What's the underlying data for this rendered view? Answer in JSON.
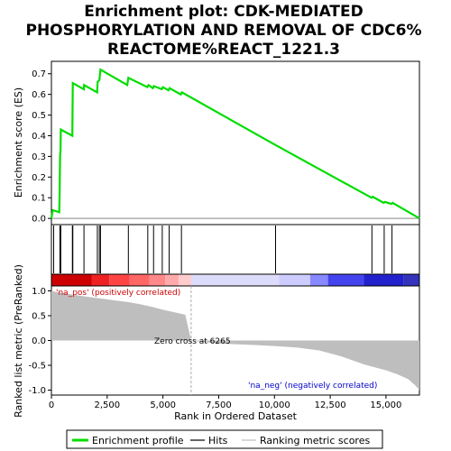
{
  "title_lines": [
    "Enrichment plot: CDK-MEDIATED",
    "PHOSPHORYLATION AND REMOVAL OF CDC6%",
    "REACTOME%REACT_1221.3"
  ],
  "colors": {
    "es_line": "#00dd00",
    "pos_label": "#cc0000",
    "neg_label": "#0000cc",
    "metric_fill": "#bebebe",
    "zero_cross": "#aaaaaa"
  },
  "chart_data": [
    {
      "type": "line",
      "name": "enrichment-profile",
      "ylabel": "Enrichment score (ES)",
      "xlim": [
        0,
        16500
      ],
      "ylim": [
        -0.03,
        0.76
      ],
      "yticks": [
        0.0,
        0.1,
        0.2,
        0.3,
        0.4,
        0.5,
        0.6,
        0.7
      ],
      "ytick_labels": [
        "0.0",
        "0.1",
        "0.2",
        "0.3",
        "0.4",
        "0.5",
        "0.6",
        "0.7"
      ],
      "grid": false,
      "points": [
        [
          0,
          0.0
        ],
        [
          60,
          0.04
        ],
        [
          350,
          0.03
        ],
        [
          370,
          0.12
        ],
        [
          390,
          0.3
        ],
        [
          410,
          0.33
        ],
        [
          420,
          0.43
        ],
        [
          940,
          0.4
        ],
        [
          960,
          0.655
        ],
        [
          1450,
          0.625
        ],
        [
          1470,
          0.645
        ],
        [
          2050,
          0.61
        ],
        [
          2070,
          0.66
        ],
        [
          2150,
          0.67
        ],
        [
          2170,
          0.69
        ],
        [
          2200,
          0.72
        ],
        [
          3400,
          0.645
        ],
        [
          3450,
          0.68
        ],
        [
          4300,
          0.635
        ],
        [
          4350,
          0.645
        ],
        [
          4550,
          0.63
        ],
        [
          4600,
          0.64
        ],
        [
          4950,
          0.625
        ],
        [
          5000,
          0.635
        ],
        [
          5250,
          0.62
        ],
        [
          5300,
          0.63
        ],
        [
          5800,
          0.6
        ],
        [
          5850,
          0.61
        ],
        [
          10050,
          0.355
        ],
        [
          14350,
          0.1
        ],
        [
          14400,
          0.105
        ],
        [
          14900,
          0.075
        ],
        [
          14950,
          0.08
        ],
        [
          15250,
          0.07
        ],
        [
          15300,
          0.075
        ],
        [
          16500,
          0.0
        ]
      ]
    },
    {
      "type": "bar",
      "name": "hits",
      "x": [
        100,
        380,
        420,
        940,
        960,
        1460,
        2060,
        2150,
        2200,
        3450,
        4320,
        4580,
        4970,
        5280,
        5830,
        10050,
        14370,
        14920,
        15270
      ]
    },
    {
      "type": "area",
      "name": "ranked-list-metric",
      "ylabel": "Ranked list metric (PreRanked)",
      "xlabel": "Rank in Ordered Dataset",
      "xlim": [
        0,
        16500
      ],
      "ylim": [
        -1.1,
        1.1
      ],
      "yticks": [
        -1.0,
        -0.5,
        0.0,
        0.5,
        1.0
      ],
      "ytick_labels": [
        "-1.0",
        "-0.5",
        "0.0",
        "0.5",
        "1.0"
      ],
      "xticks": [
        0,
        2500,
        5000,
        7500,
        10000,
        12500,
        15000
      ],
      "xtick_labels": [
        "0",
        "2,500",
        "5,000",
        "7,500",
        "10,000",
        "12,500",
        "15,000"
      ],
      "points": [
        [
          0,
          1.0
        ],
        [
          200,
          0.98
        ],
        [
          600,
          0.95
        ],
        [
          1000,
          0.92
        ],
        [
          1500,
          0.89
        ],
        [
          2000,
          0.86
        ],
        [
          2500,
          0.83
        ],
        [
          3000,
          0.8
        ],
        [
          3500,
          0.77
        ],
        [
          4000,
          0.73
        ],
        [
          4500,
          0.68
        ],
        [
          5000,
          0.62
        ],
        [
          5500,
          0.57
        ],
        [
          6000,
          0.52
        ],
        [
          6265,
          0.0
        ],
        [
          7000,
          -0.04
        ],
        [
          8000,
          -0.07
        ],
        [
          9000,
          -0.09
        ],
        [
          10000,
          -0.11
        ],
        [
          11000,
          -0.14
        ],
        [
          12000,
          -0.2
        ],
        [
          12500,
          -0.26
        ],
        [
          13000,
          -0.32
        ],
        [
          13500,
          -0.4
        ],
        [
          14000,
          -0.48
        ],
        [
          14500,
          -0.54
        ],
        [
          15000,
          -0.6
        ],
        [
          15500,
          -0.68
        ],
        [
          16000,
          -0.78
        ],
        [
          16300,
          -0.9
        ],
        [
          16500,
          -1.0
        ]
      ],
      "annotations": {
        "pos": "'na_pos' (positively correlated)",
        "neg": "'na_neg' (negatively correlated)",
        "zero_cross": "Zero cross at 6265"
      },
      "zero_cross": 6265
    }
  ],
  "heatmap_strip": {
    "segments": [
      {
        "start": 0,
        "end": 1800,
        "color": "#cc0000"
      },
      {
        "start": 1800,
        "end": 2600,
        "color": "#ee2222"
      },
      {
        "start": 2600,
        "end": 3500,
        "color": "#ff4444"
      },
      {
        "start": 3500,
        "end": 4400,
        "color": "#ff6666"
      },
      {
        "start": 4400,
        "end": 5100,
        "color": "#ff8888"
      },
      {
        "start": 5100,
        "end": 5700,
        "color": "#ffaaaa"
      },
      {
        "start": 5700,
        "end": 6265,
        "color": "#ffcccc"
      },
      {
        "start": 6265,
        "end": 10200,
        "color": "#dcdcfa"
      },
      {
        "start": 10200,
        "end": 11600,
        "color": "#ccccff"
      },
      {
        "start": 11600,
        "end": 12400,
        "color": "#8888ff"
      },
      {
        "start": 12400,
        "end": 14000,
        "color": "#4444ee"
      },
      {
        "start": 14000,
        "end": 15800,
        "color": "#2222cc"
      },
      {
        "start": 15800,
        "end": 16500,
        "color": "#3333bb"
      }
    ]
  },
  "legend": {
    "items": [
      {
        "label": "Enrichment profile",
        "color": "#00dd00",
        "kind": "line-thick"
      },
      {
        "label": "Hits",
        "color": "#000000",
        "kind": "line"
      },
      {
        "label": "Ranking metric scores",
        "color": "#bebebe",
        "kind": "line"
      }
    ]
  }
}
